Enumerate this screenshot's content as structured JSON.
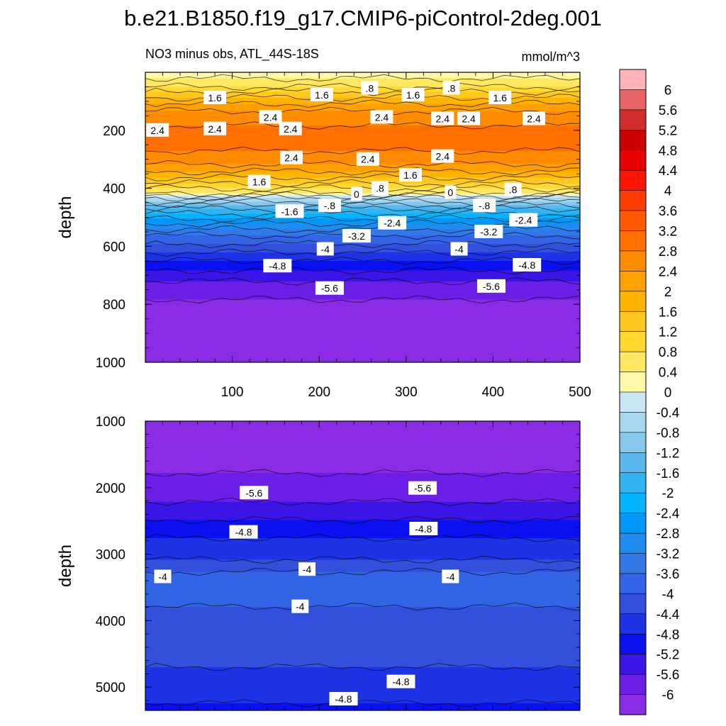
{
  "title": "b.e21.B1850.f19_g17.CMIP6-piControl-2deg.001",
  "chart_data": [
    {
      "type": "heatmap",
      "panel": "upper",
      "subtitle": "NO3 minus obs, ATL_44S-18S",
      "units": "mmol/m^3",
      "ylabel": "depth",
      "xlabel": "",
      "xlim": [
        0,
        500
      ],
      "ylim": [
        1000,
        0
      ],
      "xticks": [
        100,
        200,
        300,
        400,
        500
      ],
      "yticks": [
        200,
        400,
        600,
        800,
        1000
      ],
      "grid": false,
      "depth_profile": {
        "depth": [
          0,
          40,
          80,
          120,
          160,
          200,
          250,
          300,
          340,
          380,
          410,
          430,
          450,
          470,
          490,
          520,
          550,
          580,
          610,
          640,
          660,
          690,
          720,
          760,
          800,
          1000
        ],
        "value": [
          0.2,
          0.6,
          1.5,
          2.3,
          2.7,
          2.9,
          2.9,
          2.6,
          2.0,
          1.2,
          0.5,
          -0.3,
          -1.0,
          -1.6,
          -2.2,
          -2.8,
          -3.4,
          -3.9,
          -4.3,
          -4.7,
          -5.0,
          -5.3,
          -5.6,
          -5.9,
          -6.1,
          -6.2
        ]
      },
      "contour_labels": [
        {
          "text": "1.6",
          "x": 80,
          "depth": 88
        },
        {
          "text": "1.6",
          "x": 203,
          "depth": 78
        },
        {
          "text": ".8",
          "x": 258,
          "depth": 55
        },
        {
          "text": "1.6",
          "x": 308,
          "depth": 78
        },
        {
          "text": ".8",
          "x": 352,
          "depth": 55
        },
        {
          "text": "1.6",
          "x": 408,
          "depth": 88
        },
        {
          "text": "2.4",
          "x": 14,
          "depth": 200
        },
        {
          "text": "2.4",
          "x": 80,
          "depth": 195
        },
        {
          "text": "2.4",
          "x": 144,
          "depth": 155
        },
        {
          "text": "2.4",
          "x": 167,
          "depth": 195
        },
        {
          "text": "2.4",
          "x": 272,
          "depth": 155
        },
        {
          "text": "2.4",
          "x": 342,
          "depth": 160
        },
        {
          "text": "2.4",
          "x": 372,
          "depth": 160
        },
        {
          "text": "2.4",
          "x": 447,
          "depth": 160
        },
        {
          "text": "2.4",
          "x": 168,
          "depth": 295
        },
        {
          "text": "2.4",
          "x": 256,
          "depth": 300
        },
        {
          "text": "2.4",
          "x": 342,
          "depth": 290
        },
        {
          "text": "1.6",
          "x": 131,
          "depth": 378
        },
        {
          "text": "1.6",
          "x": 305,
          "depth": 355
        },
        {
          "text": ".8",
          "x": 270,
          "depth": 400
        },
        {
          "text": ".8",
          "x": 423,
          "depth": 405
        },
        {
          "text": "0",
          "x": 243,
          "depth": 420
        },
        {
          "text": "0",
          "x": 351,
          "depth": 415
        },
        {
          "text": "-.8",
          "x": 212,
          "depth": 460
        },
        {
          "text": "-.8",
          "x": 390,
          "depth": 460
        },
        {
          "text": "-1.6",
          "x": 166,
          "depth": 480
        },
        {
          "text": "-2.4",
          "x": 284,
          "depth": 520
        },
        {
          "text": "-2.4",
          "x": 435,
          "depth": 510
        },
        {
          "text": "-3.2",
          "x": 243,
          "depth": 565
        },
        {
          "text": "-3.2",
          "x": 395,
          "depth": 550
        },
        {
          "text": "-4",
          "x": 207,
          "depth": 610
        },
        {
          "text": "-4",
          "x": 361,
          "depth": 610
        },
        {
          "text": "-4.8",
          "x": 152,
          "depth": 668
        },
        {
          "text": "-4.8",
          "x": 439,
          "depth": 665
        },
        {
          "text": "-5.6",
          "x": 212,
          "depth": 745
        },
        {
          "text": "-5.6",
          "x": 398,
          "depth": 738
        }
      ]
    },
    {
      "type": "heatmap",
      "panel": "lower",
      "ylabel": "depth",
      "xlabel": "",
      "xlim": [
        0,
        500
      ],
      "ylim": [
        5350,
        1000
      ],
      "yticks": [
        1000,
        2000,
        3000,
        4000,
        5000
      ],
      "grid": false,
      "depth_profile": {
        "depth": [
          1000,
          1500,
          1900,
          2150,
          2400,
          2650,
          2900,
          3150,
          3300,
          3600,
          3900,
          4200,
          4600,
          5000,
          5350
        ],
        "value": [
          -6.1,
          -6.1,
          -5.95,
          -5.7,
          -5.3,
          -4.95,
          -4.6,
          -4.3,
          -3.85,
          -3.85,
          -4.1,
          -4.2,
          -4.35,
          -4.6,
          -4.9
        ]
      },
      "contour_labels": [
        {
          "text": "-5.6",
          "x": 125,
          "depth": 2080
        },
        {
          "text": "-5.6",
          "x": 319,
          "depth": 2010
        },
        {
          "text": "-4.8",
          "x": 113,
          "depth": 2670
        },
        {
          "text": "-4.8",
          "x": 320,
          "depth": 2620
        },
        {
          "text": "-4",
          "x": 20,
          "depth": 3340
        },
        {
          "text": "-4",
          "x": 186,
          "depth": 3230
        },
        {
          "text": "-4",
          "x": 351,
          "depth": 3340
        },
        {
          "text": "-4",
          "x": 178,
          "depth": 3790
        },
        {
          "text": "-4.8",
          "x": 294,
          "depth": 4920
        },
        {
          "text": "-4.8",
          "x": 228,
          "depth": 5180
        }
      ]
    }
  ],
  "colorbar": {
    "levels": [
      "6",
      "5.6",
      "5.2",
      "4.8",
      "4.4",
      "4",
      "3.6",
      "3.2",
      "2.8",
      "2.4",
      "2",
      "1.6",
      "1.2",
      "0.8",
      "0.4",
      "0",
      "-0.4",
      "-0.8",
      "-1.2",
      "-1.6",
      "-2",
      "-2.4",
      "-2.8",
      "-3.2",
      "-3.6",
      "-4",
      "-4.4",
      "-4.8",
      "-5.2",
      "-5.6",
      "-6"
    ],
    "colors": [
      "#ffb3b8",
      "#e86466",
      "#d22d2d",
      "#cc0000",
      "#e80000",
      "#ff1400",
      "#ff3c00",
      "#ff5a00",
      "#ff7000",
      "#ff8c00",
      "#ffa000",
      "#ffb400",
      "#ffc81e",
      "#ffd830",
      "#ffe860",
      "#fff8a8",
      "#c8e6f4",
      "#a8d8f0",
      "#88c8ec",
      "#5ab8ec",
      "#32b4f0",
      "#00b4ff",
      "#0098f6",
      "#1e8cf0",
      "#3278e6",
      "#3264e6",
      "#3250dc",
      "#1e32e6",
      "#0a10f0",
      "#3c14e6",
      "#6a1ee6",
      "#8a2be6"
    ]
  }
}
